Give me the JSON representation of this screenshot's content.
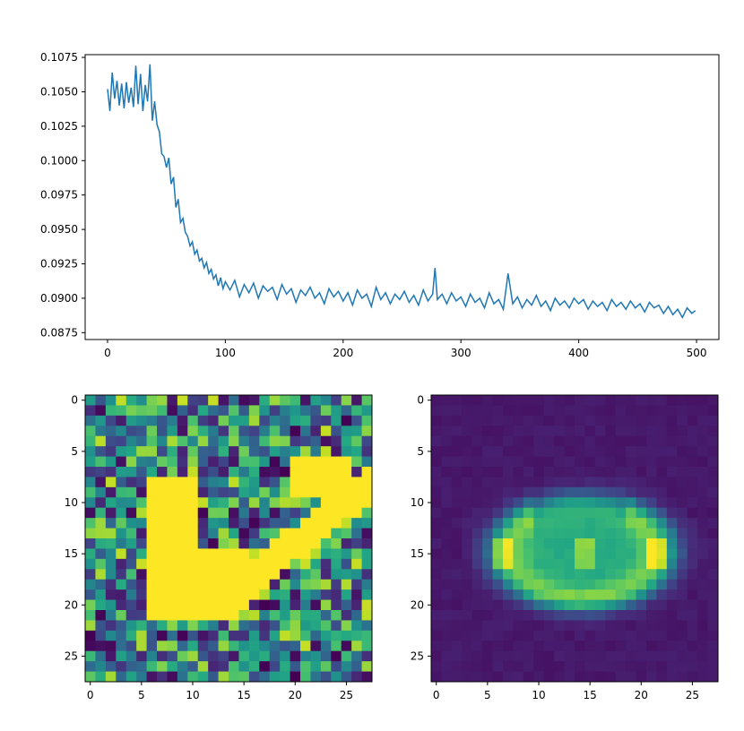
{
  "chart_data": [
    {
      "type": "line",
      "title": "",
      "xlabel": "",
      "ylabel": "",
      "color": "#1f77b4",
      "xlim": [
        -19,
        519
      ],
      "ylim": [
        0.087,
        0.1077
      ],
      "x_ticks": [
        0,
        100,
        200,
        300,
        400,
        500
      ],
      "x_tick_labels": [
        "0",
        "100",
        "200",
        "300",
        "400",
        "500"
      ],
      "y_ticks": [
        0.0875,
        0.09,
        0.0925,
        0.095,
        0.0975,
        0.1,
        0.1025,
        0.105,
        0.1075
      ],
      "y_tick_labels": [
        "0.0875",
        "0.0900",
        "0.0925",
        "0.0950",
        "0.0975",
        "0.1000",
        "0.1025",
        "0.1050",
        "0.1075"
      ],
      "series": [
        {
          "x": [
            0,
            2,
            4,
            6,
            8,
            10,
            12,
            14,
            16,
            18,
            20,
            22,
            24,
            26,
            28,
            30,
            32,
            34,
            36,
            38,
            40,
            42,
            44,
            46,
            48,
            50,
            52,
            54,
            56,
            58,
            60,
            62,
            64,
            66,
            68,
            70,
            72,
            74,
            76,
            78,
            80,
            82,
            84,
            86,
            88,
            90,
            92,
            94,
            96,
            98,
            100,
            104,
            108,
            112,
            116,
            120,
            124,
            128,
            132,
            136,
            140,
            144,
            148,
            152,
            156,
            160,
            164,
            168,
            172,
            176,
            180,
            184,
            188,
            192,
            196,
            200,
            204,
            208,
            212,
            216,
            220,
            224,
            228,
            232,
            236,
            240,
            244,
            248,
            252,
            256,
            260,
            264,
            268,
            272,
            276,
            278,
            280,
            284,
            288,
            292,
            296,
            300,
            304,
            308,
            312,
            316,
            320,
            324,
            328,
            332,
            336,
            340,
            344,
            348,
            352,
            356,
            360,
            364,
            368,
            372,
            376,
            380,
            384,
            388,
            392,
            396,
            400,
            404,
            408,
            412,
            416,
            420,
            424,
            428,
            432,
            436,
            440,
            444,
            448,
            452,
            456,
            460,
            464,
            468,
            472,
            476,
            480,
            484,
            488,
            492,
            496,
            499
          ],
          "y": [
            0.1052,
            0.1036,
            0.1064,
            0.1045,
            0.1058,
            0.104,
            0.1056,
            0.1038,
            0.1057,
            0.1042,
            0.1053,
            0.1039,
            0.1069,
            0.1041,
            0.1063,
            0.1036,
            0.1055,
            0.1043,
            0.107,
            0.1029,
            0.1043,
            0.1026,
            0.1021,
            0.1005,
            0.1003,
            0.0995,
            0.1002,
            0.0983,
            0.0988,
            0.0966,
            0.0972,
            0.0955,
            0.0958,
            0.0948,
            0.0945,
            0.0938,
            0.0941,
            0.0932,
            0.0935,
            0.0927,
            0.0929,
            0.0922,
            0.0926,
            0.0918,
            0.0921,
            0.0914,
            0.0917,
            0.0909,
            0.0915,
            0.0907,
            0.0912,
            0.0906,
            0.0913,
            0.0901,
            0.091,
            0.0904,
            0.0911,
            0.09,
            0.0909,
            0.0905,
            0.0908,
            0.0899,
            0.091,
            0.0903,
            0.0907,
            0.0897,
            0.0906,
            0.0902,
            0.0908,
            0.09,
            0.0904,
            0.0896,
            0.0907,
            0.0901,
            0.0905,
            0.0898,
            0.0904,
            0.0895,
            0.0906,
            0.09,
            0.0903,
            0.0894,
            0.0908,
            0.0899,
            0.0904,
            0.0896,
            0.0903,
            0.0899,
            0.0905,
            0.0897,
            0.0902,
            0.0895,
            0.0906,
            0.0898,
            0.0903,
            0.0922,
            0.0899,
            0.0903,
            0.0896,
            0.0904,
            0.0898,
            0.0901,
            0.0894,
            0.0903,
            0.0897,
            0.09,
            0.0893,
            0.0904,
            0.0896,
            0.0899,
            0.0892,
            0.0918,
            0.0896,
            0.0901,
            0.0893,
            0.0899,
            0.0895,
            0.0902,
            0.0894,
            0.0898,
            0.0891,
            0.09,
            0.0895,
            0.0898,
            0.0893,
            0.09,
            0.0896,
            0.0899,
            0.0892,
            0.0898,
            0.0894,
            0.0897,
            0.0891,
            0.0899,
            0.0894,
            0.0897,
            0.0892,
            0.0898,
            0.0893,
            0.0896,
            0.089,
            0.0897,
            0.0893,
            0.0895,
            0.0889,
            0.0894,
            0.0888,
            0.0892,
            0.0886,
            0.0893,
            0.0889,
            0.0891
          ]
        }
      ]
    },
    {
      "type": "heatmap",
      "title": "",
      "colormap": "viridis",
      "rows": 28,
      "cols": 28,
      "x_ticks": [
        0,
        5,
        10,
        15,
        20,
        25
      ],
      "x_tick_labels": [
        "0",
        "5",
        "10",
        "15",
        "20",
        "25"
      ],
      "y_ticks": [
        0,
        5,
        10,
        15,
        20,
        25
      ],
      "y_tick_labels": [
        "0",
        "5",
        "10",
        "15",
        "20",
        "25"
      ],
      "description_of_values": "random noise (0-1) with a bright checkmark / digit-like stroke at value 1.0",
      "shape_cells": "stroke from (row 8-21, col 6-11) and diagonal arm to (row 6-9, col 21-26)"
    },
    {
      "type": "heatmap",
      "title": "",
      "colormap": "viridis",
      "rows": 28,
      "cols": 28,
      "x_ticks": [
        0,
        5,
        10,
        15,
        20,
        25
      ],
      "x_tick_labels": [
        "0",
        "5",
        "10",
        "15",
        "20",
        "25"
      ],
      "y_ticks": [
        0,
        5,
        10,
        15,
        20,
        25
      ],
      "y_tick_labels": [
        "0",
        "5",
        "10",
        "15",
        "20",
        "25"
      ],
      "description_of_values": "smooth blurry reconstruction: dark background, bright elliptical ring centered near row 15, col 14"
    }
  ]
}
